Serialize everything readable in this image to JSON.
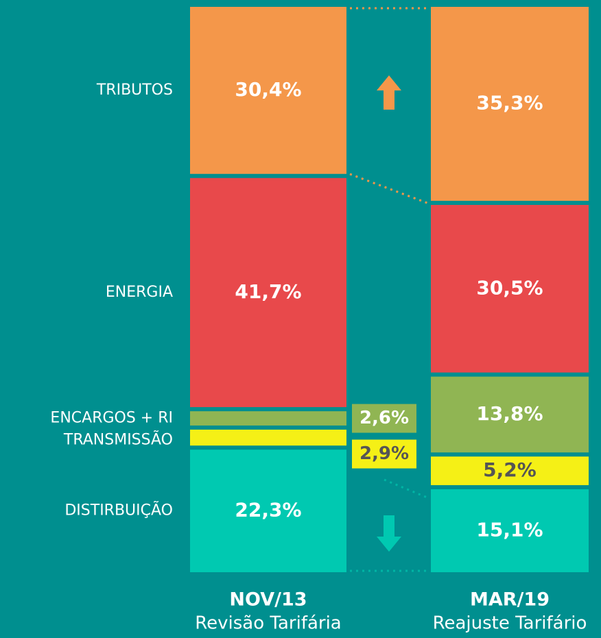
{
  "chart_data": {
    "type": "bar",
    "stacked": true,
    "categories": [
      "NOV/13",
      "MAR/19"
    ],
    "category_subtitles": [
      "Revisão Tarifária",
      "Reajuste Tarifário"
    ],
    "series": [
      {
        "name": "DISTIRBUIÇÃO",
        "color": "#00c9b1",
        "values": [
          22.3,
          15.1
        ],
        "value_labels": [
          "22,3%",
          "15,1%"
        ]
      },
      {
        "name": "TRANSMISSÃO",
        "color": "#f5f016",
        "values": [
          2.9,
          5.2
        ],
        "value_labels": [
          "2,9%",
          "5,2%"
        ]
      },
      {
        "name": "ENCARGOS + RI",
        "color": "#90b553",
        "values": [
          2.6,
          13.8
        ],
        "value_labels": [
          "2,6%",
          "13,8%"
        ]
      },
      {
        "name": "ENERGIA",
        "color": "#e8494b",
        "values": [
          41.7,
          30.5
        ],
        "value_labels": [
          "41,7%",
          "30,5%"
        ]
      },
      {
        "name": "TRIBUTOS",
        "color": "#f4974a",
        "values": [
          30.4,
          35.3
        ],
        "value_labels": [
          "30,4%",
          "35,3%"
        ]
      }
    ]
  }
}
